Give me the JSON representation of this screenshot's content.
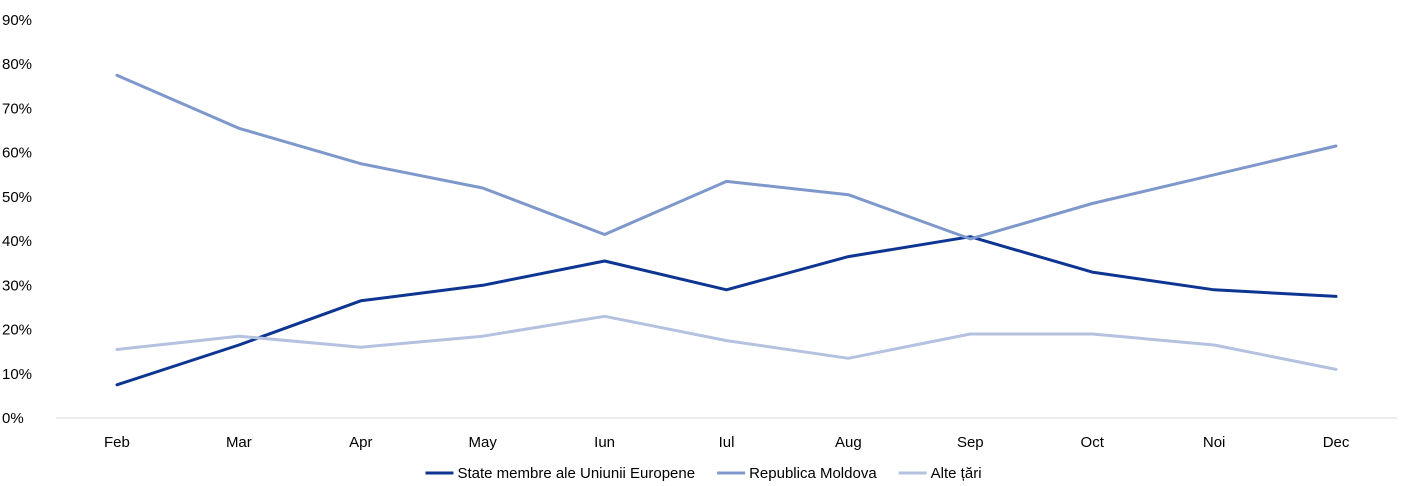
{
  "chart_data": {
    "type": "line",
    "categories": [
      "Feb",
      "Mar",
      "Apr",
      "May",
      "Iun",
      "Iul",
      "Aug",
      "Sep",
      "Oct",
      "Noi",
      "Dec"
    ],
    "y_ticks": [
      "0%",
      "10%",
      "20%",
      "30%",
      "40%",
      "50%",
      "60%",
      "70%",
      "80%",
      "90%"
    ],
    "ylim": [
      0,
      90
    ],
    "y_unit": "%",
    "grid": false,
    "legend_position": "bottom",
    "series": [
      {
        "name": "State membre ale Uniunii Europene",
        "color": "#0d3591",
        "values": [
          7.5,
          16.5,
          26.5,
          30,
          35.5,
          29,
          36.5,
          41,
          33,
          29,
          27.5
        ]
      },
      {
        "name": "Republica Moldova",
        "color": "#7f98cc",
        "values": [
          77.5,
          65.5,
          57.5,
          52,
          41.5,
          53.5,
          50.5,
          40.5,
          48.5,
          55,
          61.5
        ]
      },
      {
        "name": "Alte țări",
        "color": "#b4c2e0",
        "values": [
          15.5,
          18.5,
          16,
          18.5,
          23,
          17.5,
          13.5,
          19,
          19,
          16.5,
          11
        ]
      }
    ]
  }
}
